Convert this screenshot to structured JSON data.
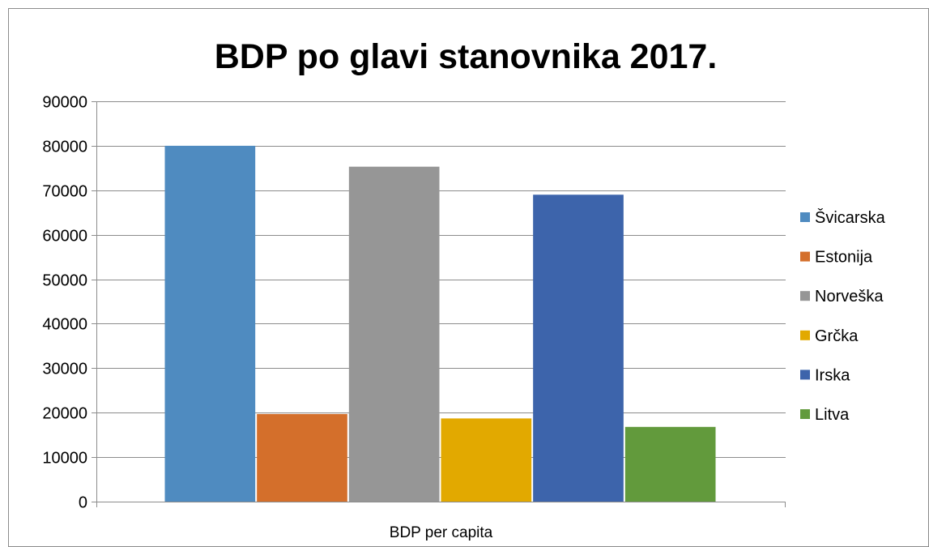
{
  "chart_data": {
    "type": "bar",
    "title": "BDP po glavi stanovnika 2017.",
    "xlabel": "",
    "ylabel": "",
    "categories": [
      "BDP per capita"
    ],
    "ylim": [
      0,
      90000
    ],
    "y_ticks": [
      0,
      10000,
      20000,
      30000,
      40000,
      50000,
      60000,
      70000,
      80000,
      90000
    ],
    "grid": true,
    "legend_position": "right",
    "series": [
      {
        "name": "Švicarska",
        "values": [
          80000
        ],
        "color": "#4F8BC0"
      },
      {
        "name": "Estonija",
        "values": [
          19700
        ],
        "color": "#D46F2B"
      },
      {
        "name": "Norveška",
        "values": [
          75300
        ],
        "color": "#969696"
      },
      {
        "name": "Grčka",
        "values": [
          18700
        ],
        "color": "#E2A900"
      },
      {
        "name": "Irska",
        "values": [
          69000
        ],
        "color": "#3D64AB"
      },
      {
        "name": "Litva",
        "values": [
          16800
        ],
        "color": "#629A3C"
      }
    ]
  }
}
